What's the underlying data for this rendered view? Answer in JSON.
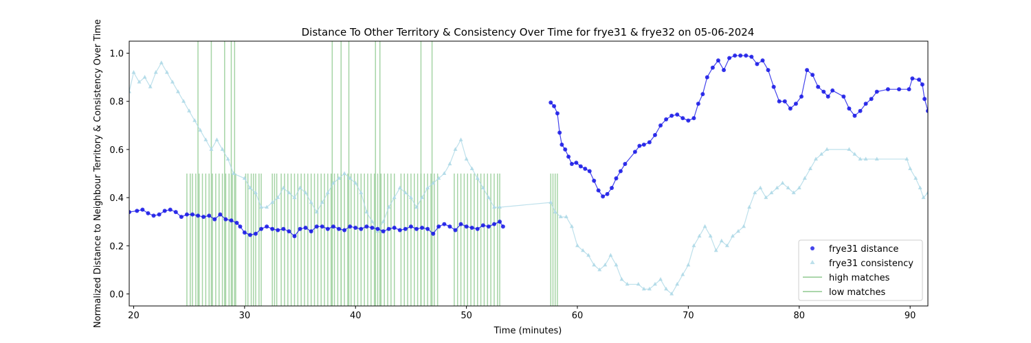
{
  "chart_data": {
    "type": "scatter",
    "title": "Distance To Other Territory & Consistency Over Time for frye31 & frye32 on 05-06-2024",
    "xlabel": "Time (minutes)",
    "ylabel": "Normalized Distance to Neighbour Territory & Consistency Over Time",
    "xlim": [
      19.6,
      91.6
    ],
    "ylim": [
      -0.05,
      1.05
    ],
    "x_ticks": [
      20,
      30,
      40,
      50,
      60,
      70,
      80,
      90
    ],
    "y_ticks": [
      0.0,
      0.2,
      0.4,
      0.6,
      0.8,
      1.0
    ],
    "x_tick_labels": [
      "20",
      "30",
      "40",
      "50",
      "60",
      "70",
      "80",
      "90"
    ],
    "y_tick_labels": [
      "0.0",
      "0.2",
      "0.4",
      "0.6",
      "0.8",
      "1.0"
    ],
    "legend_position": "lower-right",
    "legend": [
      {
        "label": "frye31 distance",
        "marker": "circle",
        "color": "#1414e6"
      },
      {
        "label": "frye31 consistency",
        "marker": "triangle",
        "color": "#add8e6"
      },
      {
        "label": "high matches",
        "marker": "line",
        "color": "#8fc98f"
      },
      {
        "label": "low matches",
        "marker": "line",
        "color": "#8fc98f"
      }
    ],
    "series": [
      {
        "name": "frye31 distance",
        "color": "#1414e6",
        "points": [
          [
            19.6,
            0.34
          ],
          [
            20.3,
            0.345
          ],
          [
            20.8,
            0.35
          ],
          [
            21.3,
            0.335
          ],
          [
            21.8,
            0.325
          ],
          [
            22.3,
            0.33
          ],
          [
            22.8,
            0.345
          ],
          [
            23.3,
            0.35
          ],
          [
            23.8,
            0.34
          ],
          [
            24.3,
            0.32
          ],
          [
            24.8,
            0.33
          ],
          [
            25.3,
            0.33
          ],
          [
            25.8,
            0.325
          ],
          [
            26.3,
            0.32
          ],
          [
            26.8,
            0.325
          ],
          [
            27.3,
            0.31
          ],
          [
            27.8,
            0.33
          ],
          [
            28.3,
            0.31
          ],
          [
            28.8,
            0.305
          ],
          [
            29.3,
            0.295
          ],
          [
            29.6,
            0.28
          ],
          [
            30.0,
            0.255
          ],
          [
            30.5,
            0.245
          ],
          [
            31.0,
            0.25
          ],
          [
            31.5,
            0.27
          ],
          [
            32.0,
            0.28
          ],
          [
            32.5,
            0.27
          ],
          [
            33.0,
            0.265
          ],
          [
            33.5,
            0.27
          ],
          [
            34.0,
            0.26
          ],
          [
            34.5,
            0.24
          ],
          [
            35.0,
            0.27
          ],
          [
            35.5,
            0.275
          ],
          [
            36.0,
            0.26
          ],
          [
            36.5,
            0.28
          ],
          [
            37.0,
            0.28
          ],
          [
            37.5,
            0.27
          ],
          [
            38.0,
            0.28
          ],
          [
            38.5,
            0.27
          ],
          [
            39.0,
            0.265
          ],
          [
            39.5,
            0.28
          ],
          [
            40.0,
            0.275
          ],
          [
            40.5,
            0.27
          ],
          [
            41.0,
            0.28
          ],
          [
            41.5,
            0.275
          ],
          [
            42.0,
            0.27
          ],
          [
            42.5,
            0.26
          ],
          [
            43.0,
            0.27
          ],
          [
            43.5,
            0.275
          ],
          [
            44.0,
            0.265
          ],
          [
            44.5,
            0.27
          ],
          [
            45.0,
            0.28
          ],
          [
            45.5,
            0.27
          ],
          [
            46.0,
            0.275
          ],
          [
            46.5,
            0.27
          ],
          [
            47.0,
            0.25
          ],
          [
            47.5,
            0.28
          ],
          [
            48.0,
            0.29
          ],
          [
            48.5,
            0.28
          ],
          [
            49.0,
            0.265
          ],
          [
            49.5,
            0.29
          ],
          [
            50.0,
            0.28
          ],
          [
            50.5,
            0.275
          ],
          [
            51.0,
            0.27
          ],
          [
            51.5,
            0.285
          ],
          [
            52.0,
            0.28
          ],
          [
            52.5,
            0.29
          ],
          [
            53.0,
            0.3
          ],
          [
            53.3,
            0.28
          ],
          [
            57.6,
            0.795
          ],
          [
            57.9,
            0.78
          ],
          [
            58.2,
            0.75
          ],
          [
            58.4,
            0.67
          ],
          [
            58.6,
            0.62
          ],
          [
            58.9,
            0.6
          ],
          [
            59.2,
            0.57
          ],
          [
            59.5,
            0.54
          ],
          [
            59.9,
            0.545
          ],
          [
            60.3,
            0.53
          ],
          [
            60.7,
            0.52
          ],
          [
            61.1,
            0.51
          ],
          [
            61.5,
            0.47
          ],
          [
            61.9,
            0.43
          ],
          [
            62.3,
            0.405
          ],
          [
            62.7,
            0.415
          ],
          [
            63.1,
            0.44
          ],
          [
            63.5,
            0.48
          ],
          [
            63.9,
            0.51
          ],
          [
            64.3,
            0.54
          ],
          [
            65.2,
            0.59
          ],
          [
            65.6,
            0.615
          ],
          [
            66.0,
            0.62
          ],
          [
            66.5,
            0.63
          ],
          [
            67.0,
            0.66
          ],
          [
            67.5,
            0.7
          ],
          [
            68.0,
            0.725
          ],
          [
            68.5,
            0.74
          ],
          [
            69.0,
            0.745
          ],
          [
            69.5,
            0.73
          ],
          [
            70.0,
            0.72
          ],
          [
            70.5,
            0.73
          ],
          [
            70.9,
            0.79
          ],
          [
            71.3,
            0.83
          ],
          [
            71.7,
            0.9
          ],
          [
            72.2,
            0.94
          ],
          [
            72.7,
            0.97
          ],
          [
            73.2,
            0.93
          ],
          [
            73.7,
            0.98
          ],
          [
            74.2,
            0.99
          ],
          [
            74.7,
            0.99
          ],
          [
            75.2,
            0.99
          ],
          [
            75.7,
            0.985
          ],
          [
            76.2,
            0.955
          ],
          [
            76.7,
            0.97
          ],
          [
            77.2,
            0.93
          ],
          [
            77.7,
            0.86
          ],
          [
            78.2,
            0.8
          ],
          [
            78.7,
            0.8
          ],
          [
            79.2,
            0.77
          ],
          [
            79.7,
            0.79
          ],
          [
            80.2,
            0.82
          ],
          [
            80.7,
            0.93
          ],
          [
            81.2,
            0.91
          ],
          [
            81.7,
            0.86
          ],
          [
            82.2,
            0.84
          ],
          [
            82.6,
            0.82
          ],
          [
            83.0,
            0.845
          ],
          [
            84.0,
            0.82
          ],
          [
            84.5,
            0.77
          ],
          [
            85.0,
            0.74
          ],
          [
            85.5,
            0.76
          ],
          [
            86.0,
            0.79
          ],
          [
            86.5,
            0.81
          ],
          [
            87.0,
            0.84
          ],
          [
            88.0,
            0.85
          ],
          [
            89.0,
            0.85
          ],
          [
            89.9,
            0.85
          ],
          [
            90.2,
            0.895
          ],
          [
            90.8,
            0.89
          ],
          [
            91.1,
            0.87
          ],
          [
            91.3,
            0.81
          ],
          [
            91.6,
            0.76
          ]
        ]
      },
      {
        "name": "frye31 consistency",
        "color": "#add8e6",
        "points": [
          [
            19.6,
            0.84
          ],
          [
            20.0,
            0.92
          ],
          [
            20.5,
            0.88
          ],
          [
            21.0,
            0.9
          ],
          [
            21.5,
            0.86
          ],
          [
            22.0,
            0.92
          ],
          [
            22.5,
            0.96
          ],
          [
            23.0,
            0.92
          ],
          [
            23.5,
            0.88
          ],
          [
            24.0,
            0.84
          ],
          [
            24.5,
            0.8
          ],
          [
            25.0,
            0.76
          ],
          [
            25.5,
            0.72
          ],
          [
            26.0,
            0.68
          ],
          [
            26.5,
            0.64
          ],
          [
            27.0,
            0.6
          ],
          [
            27.5,
            0.64
          ],
          [
            28.0,
            0.6
          ],
          [
            28.5,
            0.56
          ],
          [
            29.0,
            0.5
          ],
          [
            30.0,
            0.48
          ],
          [
            30.5,
            0.44
          ],
          [
            31.0,
            0.42
          ],
          [
            31.5,
            0.36
          ],
          [
            32.0,
            0.36
          ],
          [
            32.5,
            0.38
          ],
          [
            33.0,
            0.4
          ],
          [
            33.5,
            0.44
          ],
          [
            34.0,
            0.42
          ],
          [
            34.5,
            0.4
          ],
          [
            35.0,
            0.44
          ],
          [
            35.5,
            0.42
          ],
          [
            36.0,
            0.38
          ],
          [
            36.5,
            0.34
          ],
          [
            37.0,
            0.38
          ],
          [
            37.5,
            0.42
          ],
          [
            38.0,
            0.46
          ],
          [
            38.5,
            0.48
          ],
          [
            39.0,
            0.5
          ],
          [
            39.5,
            0.48
          ],
          [
            40.0,
            0.46
          ],
          [
            40.5,
            0.42
          ],
          [
            41.0,
            0.34
          ],
          [
            41.5,
            0.3
          ],
          [
            42.0,
            0.26
          ],
          [
            42.5,
            0.3
          ],
          [
            43.0,
            0.36
          ],
          [
            43.5,
            0.4
          ],
          [
            44.0,
            0.44
          ],
          [
            44.5,
            0.42
          ],
          [
            45.0,
            0.4
          ],
          [
            45.5,
            0.36
          ],
          [
            46.0,
            0.4
          ],
          [
            46.5,
            0.44
          ],
          [
            47.0,
            0.46
          ],
          [
            47.5,
            0.48
          ],
          [
            48.0,
            0.5
          ],
          [
            48.5,
            0.54
          ],
          [
            49.0,
            0.6
          ],
          [
            49.5,
            0.64
          ],
          [
            50.0,
            0.56
          ],
          [
            50.5,
            0.52
          ],
          [
            51.0,
            0.48
          ],
          [
            51.5,
            0.44
          ],
          [
            52.0,
            0.4
          ],
          [
            52.5,
            0.36
          ],
          [
            53.0,
            0.36
          ],
          [
            57.6,
            0.38
          ],
          [
            58.0,
            0.34
          ],
          [
            58.5,
            0.32
          ],
          [
            59.0,
            0.32
          ],
          [
            59.5,
            0.28
          ],
          [
            60.0,
            0.2
          ],
          [
            60.5,
            0.18
          ],
          [
            61.0,
            0.16
          ],
          [
            61.5,
            0.12
          ],
          [
            62.0,
            0.1
          ],
          [
            62.5,
            0.12
          ],
          [
            63.0,
            0.16
          ],
          [
            63.5,
            0.12
          ],
          [
            64.0,
            0.06
          ],
          [
            64.5,
            0.04
          ],
          [
            65.5,
            0.04
          ],
          [
            66.0,
            0.02
          ],
          [
            66.5,
            0.02
          ],
          [
            67.0,
            0.04
          ],
          [
            67.5,
            0.06
          ],
          [
            68.0,
            0.02
          ],
          [
            68.5,
            0.0
          ],
          [
            69.0,
            0.04
          ],
          [
            69.5,
            0.08
          ],
          [
            70.0,
            0.12
          ],
          [
            70.5,
            0.2
          ],
          [
            71.0,
            0.24
          ],
          [
            71.5,
            0.28
          ],
          [
            72.0,
            0.24
          ],
          [
            72.5,
            0.18
          ],
          [
            73.0,
            0.22
          ],
          [
            73.5,
            0.2
          ],
          [
            74.0,
            0.24
          ],
          [
            74.5,
            0.26
          ],
          [
            75.0,
            0.28
          ],
          [
            75.5,
            0.36
          ],
          [
            76.0,
            0.42
          ],
          [
            76.5,
            0.44
          ],
          [
            77.0,
            0.4
          ],
          [
            77.5,
            0.42
          ],
          [
            78.0,
            0.44
          ],
          [
            78.5,
            0.46
          ],
          [
            79.0,
            0.44
          ],
          [
            79.5,
            0.42
          ],
          [
            80.0,
            0.44
          ],
          [
            80.5,
            0.48
          ],
          [
            81.0,
            0.52
          ],
          [
            81.5,
            0.56
          ],
          [
            82.0,
            0.58
          ],
          [
            82.5,
            0.6
          ],
          [
            84.5,
            0.6
          ],
          [
            85.0,
            0.58
          ],
          [
            85.5,
            0.56
          ],
          [
            86.0,
            0.56
          ],
          [
            87.0,
            0.56
          ],
          [
            89.7,
            0.56
          ],
          [
            90.0,
            0.52
          ],
          [
            90.5,
            0.48
          ],
          [
            90.9,
            0.44
          ],
          [
            91.2,
            0.4
          ],
          [
            91.6,
            0.42
          ]
        ]
      }
    ],
    "match_lines": {
      "name": "high matches",
      "tall_x": [
        25.8,
        27.0,
        28.2,
        28.8,
        29.1,
        37.9,
        38.7,
        39.4,
        41.8,
        42.2,
        45.9,
        46.9
      ],
      "tall_ymax": 1.05,
      "short_x": [
        24.8,
        25.1,
        25.3,
        25.6,
        25.9,
        26.2,
        26.5,
        26.8,
        27.1,
        27.4,
        27.7,
        28.0,
        28.3,
        28.6,
        28.9,
        29.2,
        30.1,
        30.3,
        30.6,
        30.8,
        31.0,
        31.3,
        31.5,
        32.5,
        32.7,
        32.9,
        33.3,
        33.6,
        33.9,
        34.2,
        34.5,
        34.8,
        35.1,
        35.4,
        35.7,
        36.0,
        36.3,
        36.6,
        36.9,
        37.2,
        37.5,
        37.8,
        38.1,
        38.4,
        38.7,
        39.0,
        39.3,
        39.6,
        39.9,
        40.2,
        40.5,
        40.8,
        41.1,
        41.4,
        41.7,
        42.0,
        42.3,
        42.6,
        42.9,
        43.2,
        43.5,
        44.1,
        44.4,
        44.7,
        45.0,
        45.3,
        45.6,
        45.9,
        46.2,
        46.5,
        46.8,
        47.1,
        47.4,
        48.9,
        49.2,
        49.5,
        49.8,
        50.1,
        50.4,
        50.7,
        51.0,
        51.3,
        51.6,
        51.9,
        52.2,
        52.5,
        52.8,
        53.0,
        57.6,
        57.8,
        58.0,
        58.2
      ],
      "short_ymax": 0.5,
      "color": "#8fc98f"
    }
  }
}
